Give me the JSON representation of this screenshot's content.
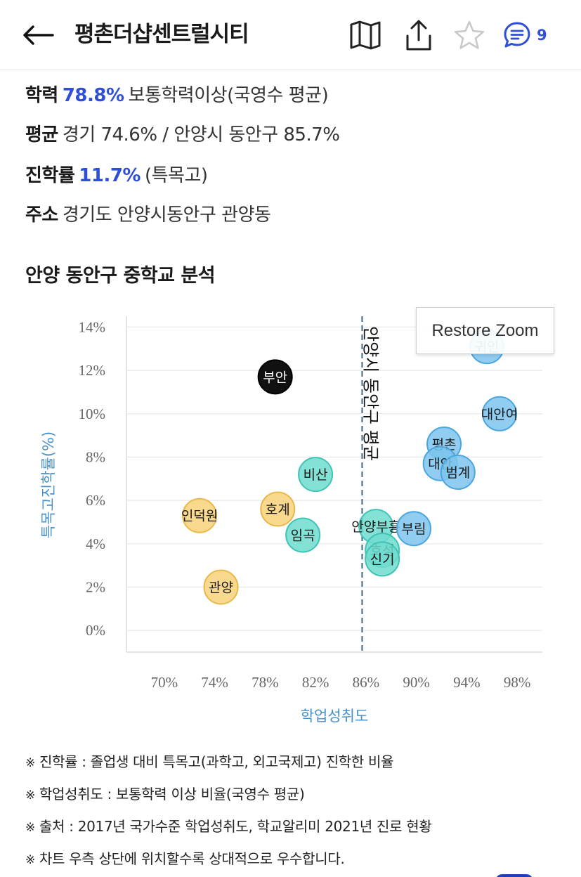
{
  "header": {
    "title": "평촌더샵센트럴시티",
    "comment_count": "9",
    "icons": {
      "back": "arrow-left-icon",
      "map": "map-icon",
      "share": "share-icon",
      "favorite": "star-icon",
      "comment": "comment-icon"
    },
    "colors": {
      "accent": "#2e4fd6"
    }
  },
  "info": {
    "achievement": {
      "label": "학력",
      "value": "78.8%",
      "desc": "보통학력이상(국영수 평균)"
    },
    "average": {
      "label": "평균",
      "desc": "경기 74.6% / 안양시 동안구 85.7%"
    },
    "advancement": {
      "label": "진학률",
      "value": "11.7%",
      "desc": "(특목고)"
    },
    "address": {
      "label": "주소",
      "desc": "경기도 안양시동안구 관양동"
    }
  },
  "section_title": "안양 동안구 중학교 분석",
  "restore_zoom": "Restore Zoom",
  "chart_data": {
    "type": "scatter",
    "title": "",
    "xlabel": "학업성취도",
    "ylabel": "특목고진학률(%)",
    "xlim": [
      67,
      100
    ],
    "ylim": [
      -1,
      14.5
    ],
    "x_ticks": [
      "70%",
      "74%",
      "78%",
      "82%",
      "86%",
      "90%",
      "94%",
      "98%"
    ],
    "x_tick_values": [
      70,
      74,
      78,
      82,
      86,
      90,
      94,
      98
    ],
    "y_ticks": [
      "0%",
      "2%",
      "4%",
      "6%",
      "8%",
      "10%",
      "12%",
      "14%"
    ],
    "y_tick_values": [
      0,
      2,
      4,
      6,
      8,
      10,
      12,
      14
    ],
    "reference_line": {
      "x": 85.7,
      "label": "안양시 동안구 평균"
    },
    "colors": {
      "yellow": "#f7d27a",
      "teal": "#6fdccf",
      "blue": "#7cc4ee",
      "black": "#111111"
    },
    "points": [
      {
        "name": "부안",
        "x": 78.8,
        "y": 11.7,
        "color": "black"
      },
      {
        "name": "인덕원",
        "x": 72.8,
        "y": 5.3,
        "color": "yellow"
      },
      {
        "name": "호계",
        "x": 79.0,
        "y": 5.6,
        "color": "yellow"
      },
      {
        "name": "관양",
        "x": 74.5,
        "y": 2.0,
        "color": "yellow"
      },
      {
        "name": "비산",
        "x": 82.0,
        "y": 7.2,
        "color": "teal"
      },
      {
        "name": "임곡",
        "x": 81.0,
        "y": 4.4,
        "color": "teal"
      },
      {
        "name": "안양부흥",
        "x": 86.8,
        "y": 4.8,
        "color": "teal"
      },
      {
        "name": "호성",
        "x": 87.3,
        "y": 3.7,
        "color": "teal"
      },
      {
        "name": "신기",
        "x": 87.3,
        "y": 3.3,
        "color": "teal"
      },
      {
        "name": "부림",
        "x": 89.8,
        "y": 4.7,
        "color": "blue"
      },
      {
        "name": "평촌",
        "x": 92.2,
        "y": 8.6,
        "color": "blue"
      },
      {
        "name": "대안",
        "x": 91.9,
        "y": 7.7,
        "color": "blue"
      },
      {
        "name": "범계",
        "x": 93.3,
        "y": 7.3,
        "color": "blue"
      },
      {
        "name": "대안여",
        "x": 96.6,
        "y": 10.0,
        "color": "blue"
      },
      {
        "name": "귀인",
        "x": 95.6,
        "y": 13.1,
        "color": "blue"
      }
    ]
  },
  "notes": {
    "mark": "※",
    "items": [
      "진학률 : 졸업생 대비 특목고(과학고, 외고국제고) 진학한 비율",
      "학업성취도 : 보통학력 이상 비율(국영수 평균)",
      "출처 : 2017년 국가수준 학업성취도, 학교알리미 2021년 진로 현황",
      "차트 우측 상단에 위치할수록 상대적으로 우수합니다."
    ]
  }
}
